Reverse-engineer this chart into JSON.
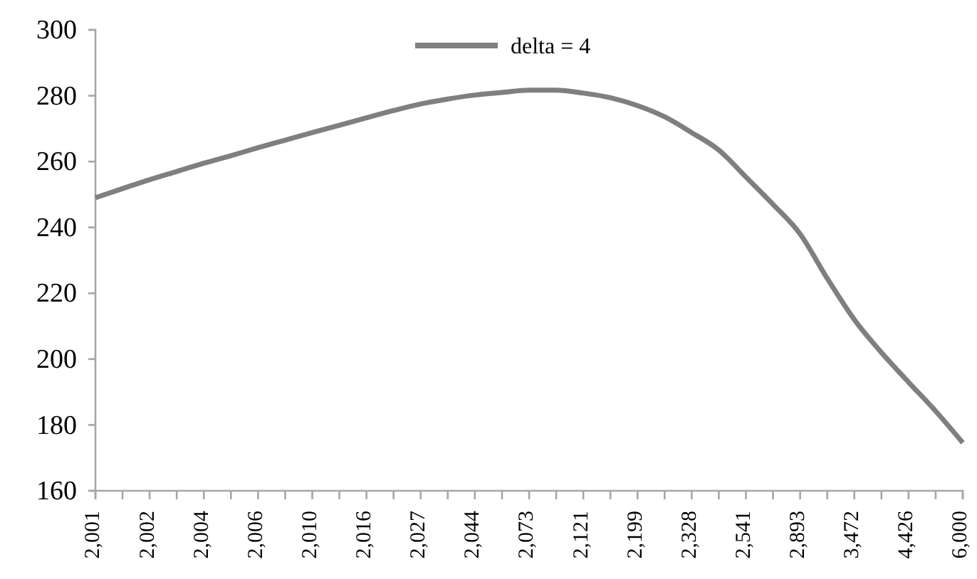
{
  "chart_data": {
    "type": "line",
    "categories": [
      "2,001",
      null,
      "2,002",
      null,
      "2,004",
      null,
      "2,006",
      null,
      "2,010",
      null,
      "2,016",
      null,
      "2,027",
      null,
      "2,044",
      null,
      "2,073",
      null,
      "2,121",
      null,
      "2,199",
      null,
      "2,328",
      null,
      "2,541",
      null,
      "2,893",
      null,
      "3,472",
      null,
      "4,426",
      null,
      "6,000"
    ],
    "series": [
      {
        "name": "delta = 4",
        "color": "#7f7f7f",
        "values": [
          249,
          251.8,
          254.5,
          257,
          259.5,
          261.8,
          264.2,
          266.5,
          268.8,
          271,
          273.3,
          275.5,
          277.5,
          279,
          280.2,
          281,
          281.7,
          281.7,
          280.8,
          279.4,
          277,
          273.6,
          268.8,
          263.5,
          255.3,
          247,
          238,
          224.5,
          212,
          202,
          193,
          184.2,
          174.6
        ]
      }
    ],
    "ylim": [
      160,
      300
    ],
    "yticks": [
      160,
      180,
      200,
      220,
      240,
      260,
      280,
      300
    ],
    "grid": false,
    "legend": "top",
    "marker": "none",
    "line_style": "solid"
  }
}
